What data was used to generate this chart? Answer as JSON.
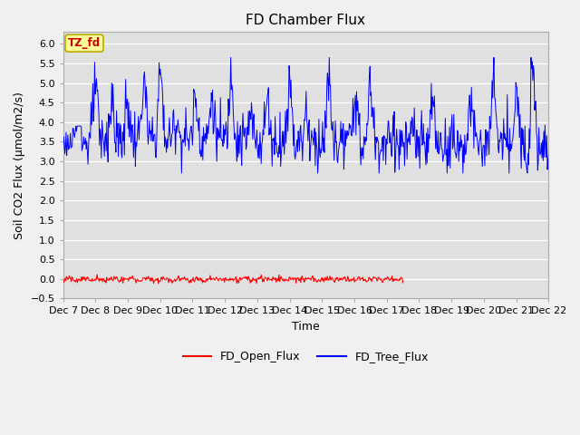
{
  "title": "FD Chamber Flux",
  "ylabel": "Soil CO2 Flux (μmol/m2/s)",
  "xlabel": "Time",
  "ylim": [
    -0.5,
    6.3
  ],
  "yticks": [
    -0.5,
    0.0,
    0.5,
    1.0,
    1.5,
    2.0,
    2.5,
    3.0,
    3.5,
    4.0,
    4.5,
    5.0,
    5.5,
    6.0
  ],
  "n_tree": 800,
  "n_open": 500,
  "fig_bg_color": "#f0f0f0",
  "plot_bg_color": "#e0e0e0",
  "tree_flux_color": "#0000FF",
  "open_flux_color": "#FF0000",
  "annotation_text": "TZ_fd",
  "annotation_bg": "#FFFF99",
  "annotation_border": "#BBAA00",
  "annotation_text_color": "#CC0000",
  "legend_labels": [
    "FD_Open_Flux",
    "FD_Tree_Flux"
  ],
  "x_tick_labels": [
    "Dec 7",
    "Dec 8",
    "Dec 9",
    "Dec 10",
    "Dec 11",
    "Dec 12",
    "Dec 13",
    "Dec 14",
    "Dec 15",
    "Dec 16",
    "Dec 17",
    "Dec 18",
    "Dec 19",
    "Dec 20",
    "Dec 21",
    "Dec 22"
  ],
  "title_fontsize": 11,
  "label_fontsize": 9,
  "tick_fontsize": 8
}
